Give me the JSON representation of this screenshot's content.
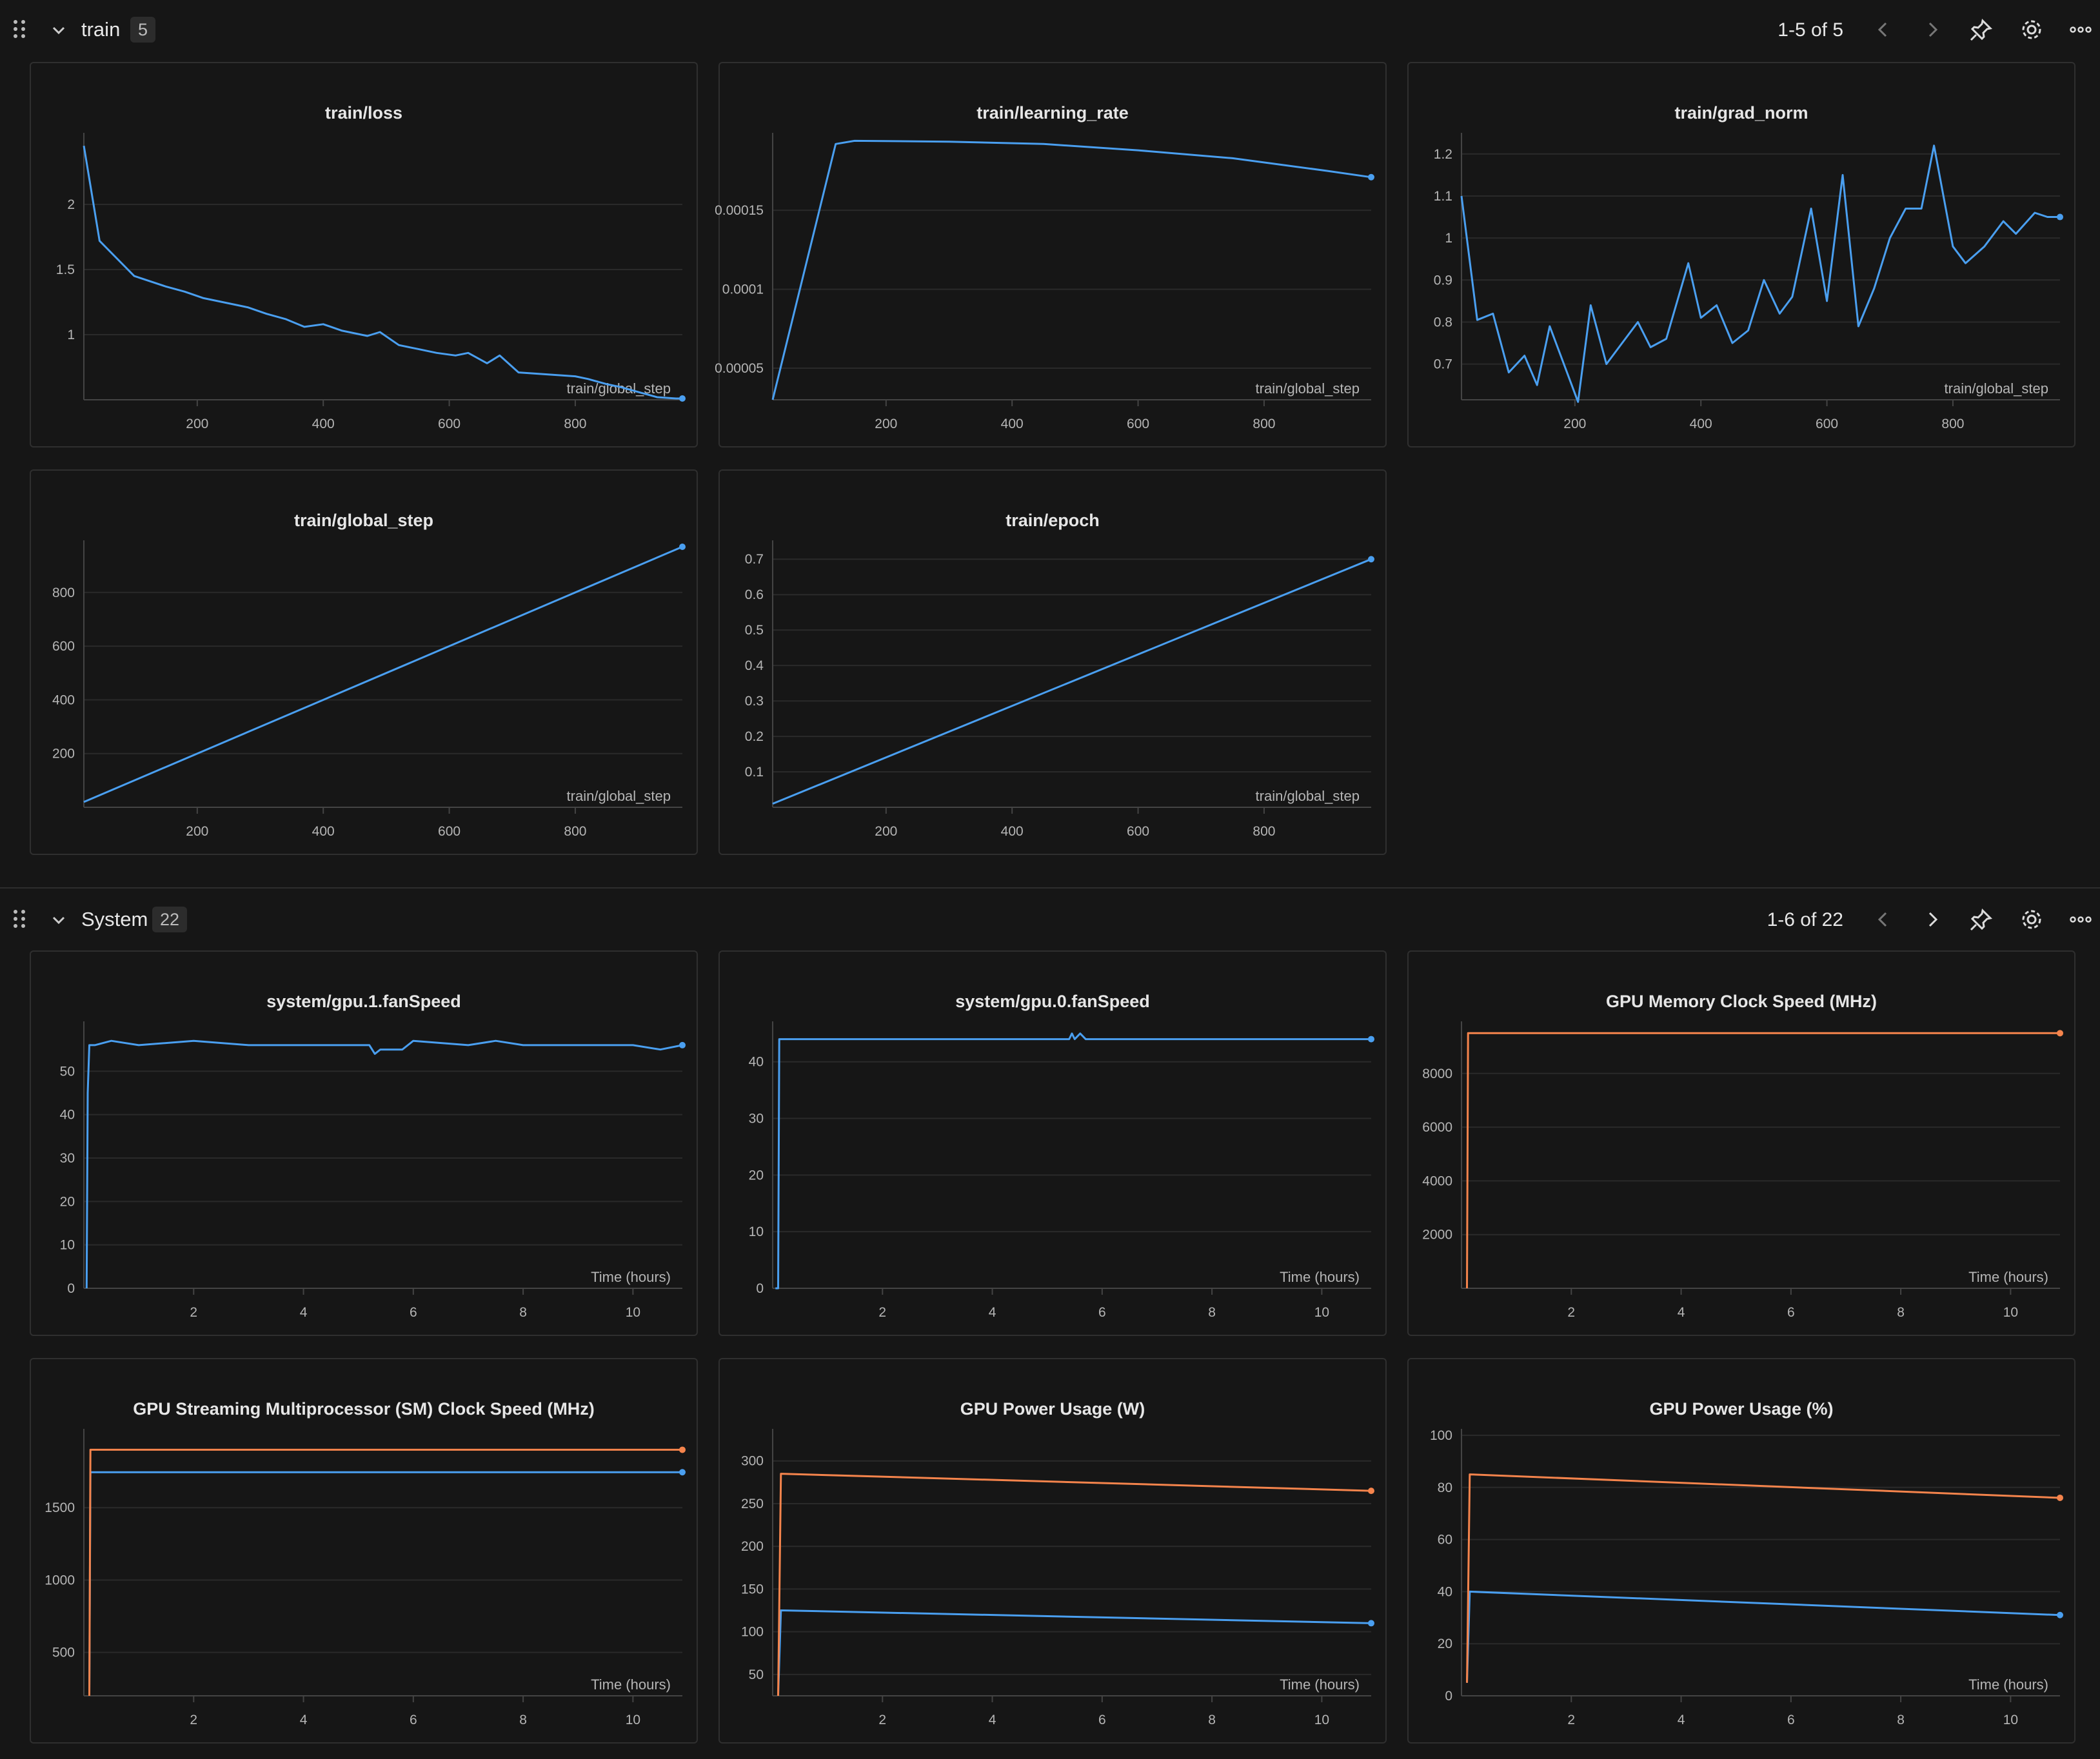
{
  "colors": {
    "blue": "#4a9ff0",
    "orange": "#f5844c",
    "grid": "#2a2a2a",
    "axis": "#444444"
  },
  "sections": [
    {
      "title": "train",
      "count": "5",
      "pager": "1-5 of 5",
      "icons": [
        "drag-handle-icon",
        "chevron-down-icon",
        "chevron-left-icon",
        "chevron-right-icon",
        "pin-icon",
        "gear-icon",
        "more-icon"
      ]
    },
    {
      "title": "System",
      "count": "22",
      "pager": "1-6 of 22",
      "icons": [
        "drag-handle-icon",
        "chevron-down-icon",
        "chevron-left-icon",
        "chevron-right-icon",
        "pin-icon",
        "gear-icon",
        "more-icon"
      ]
    }
  ],
  "chart_data": [
    {
      "type": "line",
      "title": "train/loss",
      "xlabel": "train/global_step",
      "xlim": [
        20,
        970
      ],
      "ylim": [
        0.5,
        2.5
      ],
      "xticks": [
        200,
        400,
        600,
        800
      ],
      "yticks": [
        1,
        1.5,
        2
      ],
      "ytick_labels": [
        "1",
        "1.5",
        "2"
      ],
      "series": [
        {
          "color": "blue",
          "x": [
            20,
            45,
            100,
            150,
            180,
            210,
            250,
            280,
            310,
            340,
            370,
            400,
            430,
            470,
            490,
            520,
            550,
            580,
            610,
            630,
            660,
            680,
            710,
            740,
            800,
            820,
            850,
            870,
            900,
            930,
            960,
            970
          ],
          "y": [
            2.45,
            1.72,
            1.45,
            1.37,
            1.33,
            1.28,
            1.24,
            1.21,
            1.16,
            1.12,
            1.06,
            1.08,
            1.03,
            0.99,
            1.02,
            0.92,
            0.89,
            0.86,
            0.84,
            0.86,
            0.78,
            0.84,
            0.71,
            0.7,
            0.68,
            0.66,
            0.62,
            0.6,
            0.56,
            0.52,
            0.51,
            0.51
          ]
        }
      ]
    },
    {
      "type": "line",
      "title": "train/learning_rate",
      "xlabel": "train/global_step",
      "xlim": [
        20,
        970
      ],
      "ylim": [
        3e-05,
        0.000195
      ],
      "xticks": [
        200,
        400,
        600,
        800
      ],
      "yticks": [
        5e-05,
        0.0001,
        0.00015
      ],
      "ytick_labels": [
        "0.00005",
        "0.0001",
        "0.00015"
      ],
      "series": [
        {
          "color": "blue",
          "x": [
            20,
            120,
            150,
            300,
            450,
            600,
            750,
            900,
            970
          ],
          "y": [
            3e-05,
            0.000192,
            0.000194,
            0.0001935,
            0.000192,
            0.000188,
            0.000183,
            0.000175,
            0.000171
          ]
        }
      ]
    },
    {
      "type": "line",
      "title": "train/grad_norm",
      "xlabel": "train/global_step",
      "xlim": [
        20,
        970
      ],
      "ylim": [
        0.615,
        1.235
      ],
      "xticks": [
        200,
        400,
        600,
        800
      ],
      "yticks": [
        0.7,
        0.8,
        0.9,
        1,
        1.1,
        1.2
      ],
      "ytick_labels": [
        "0.7",
        "0.8",
        "0.9",
        "1",
        "1.1",
        "1.2"
      ],
      "series": [
        {
          "color": "blue",
          "x": [
            20,
            45,
            70,
            95,
            120,
            140,
            160,
            185,
            205,
            225,
            250,
            275,
            300,
            320,
            345,
            380,
            400,
            425,
            450,
            475,
            500,
            525,
            545,
            575,
            600,
            625,
            650,
            675,
            700,
            725,
            750,
            770,
            800,
            820,
            850,
            880,
            900,
            930,
            950,
            970
          ],
          "y": [
            1.1,
            0.805,
            0.82,
            0.68,
            0.72,
            0.65,
            0.79,
            0.69,
            0.61,
            0.84,
            0.7,
            0.75,
            0.8,
            0.74,
            0.76,
            0.94,
            0.81,
            0.84,
            0.75,
            0.78,
            0.9,
            0.82,
            0.86,
            1.07,
            0.85,
            1.15,
            0.79,
            0.88,
            1.0,
            1.07,
            1.07,
            1.22,
            0.98,
            0.94,
            0.98,
            1.04,
            1.01,
            1.06,
            1.05,
            1.05
          ]
        }
      ]
    },
    {
      "type": "line",
      "title": "train/global_step",
      "xlabel": "train/global_step",
      "xlim": [
        20,
        970
      ],
      "ylim": [
        0,
        970
      ],
      "xticks": [
        200,
        400,
        600,
        800
      ],
      "yticks": [
        200,
        400,
        600,
        800
      ],
      "ytick_labels": [
        "200",
        "400",
        "600",
        "800"
      ],
      "series": [
        {
          "color": "blue",
          "x": [
            20,
            970
          ],
          "y": [
            20,
            970
          ]
        }
      ]
    },
    {
      "type": "line",
      "title": "train/epoch",
      "xlabel": "train/global_step",
      "xlim": [
        20,
        970
      ],
      "ylim": [
        0,
        0.735
      ],
      "xticks": [
        200,
        400,
        600,
        800
      ],
      "yticks": [
        0.1,
        0.2,
        0.3,
        0.4,
        0.5,
        0.6,
        0.7
      ],
      "ytick_labels": [
        "0.1",
        "0.2",
        "0.3",
        "0.4",
        "0.5",
        "0.6",
        "0.7"
      ],
      "series": [
        {
          "color": "blue",
          "x": [
            20,
            970
          ],
          "y": [
            0.01,
            0.7
          ]
        }
      ]
    },
    {
      "type": "line",
      "title": "system/gpu.1.fanSpeed",
      "xlabel": "Time (hours)",
      "xlim": [
        0,
        10.9
      ],
      "ylim": [
        0,
        60
      ],
      "xticks": [
        2,
        4,
        6,
        8,
        10
      ],
      "yticks": [
        0,
        10,
        20,
        30,
        40,
        50
      ],
      "ytick_labels": [
        "0",
        "10",
        "20",
        "30",
        "40",
        "50"
      ],
      "series": [
        {
          "color": "blue",
          "x": [
            0.05,
            0.07,
            0.1,
            0.2,
            0.5,
            1,
            2,
            3,
            4,
            5.2,
            5.3,
            5.4,
            5.8,
            6,
            7,
            7.5,
            8,
            9,
            10,
            10.5,
            10.9
          ],
          "y": [
            0,
            45,
            56,
            56,
            57,
            56,
            57,
            56,
            56,
            56,
            54,
            55,
            55,
            57,
            56,
            57,
            56,
            56,
            56,
            55,
            56
          ]
        }
      ]
    },
    {
      "type": "line",
      "title": "system/gpu.0.fanSpeed",
      "xlabel": "Time (hours)",
      "xlim": [
        0,
        10.9
      ],
      "ylim": [
        0,
        46
      ],
      "xticks": [
        2,
        4,
        6,
        8,
        10
      ],
      "yticks": [
        0,
        10,
        20,
        30,
        40
      ],
      "ytick_labels": [
        "0",
        "10",
        "20",
        "30",
        "40"
      ],
      "series": [
        {
          "color": "blue",
          "x": [
            0.05,
            0.1,
            0.12,
            5.4,
            5.45,
            5.5,
            5.6,
            5.7,
            10.9
          ],
          "y": [
            0,
            0,
            44,
            44,
            45,
            44,
            45,
            44,
            44
          ]
        }
      ]
    },
    {
      "type": "line",
      "title": "GPU Memory Clock Speed (MHz)",
      "xlabel": "Time (hours)",
      "xlim": [
        0,
        10.9
      ],
      "ylim": [
        0,
        9700
      ],
      "xticks": [
        2,
        4,
        6,
        8,
        10
      ],
      "yticks": [
        2000,
        4000,
        6000,
        8000
      ],
      "ytick_labels": [
        "2000",
        "4000",
        "6000",
        "8000"
      ],
      "series": [
        {
          "color": "orange",
          "x": [
            0.1,
            0.12,
            10.9
          ],
          "y": [
            0,
            9500,
            9500
          ]
        }
      ]
    },
    {
      "type": "line",
      "title": "GPU Streaming Multiprocessor (SM) Clock Speed (MHz)",
      "xlabel": "Time (hours)",
      "xlim": [
        0,
        10.9
      ],
      "ylim": [
        200,
        2000
      ],
      "xticks": [
        2,
        4,
        6,
        8,
        10
      ],
      "yticks": [
        500,
        1000,
        1500
      ],
      "ytick_labels": [
        "500",
        "1000",
        "1500"
      ],
      "series": [
        {
          "color": "blue",
          "x": [
            0.1,
            0.12,
            10.9
          ],
          "y": [
            200,
            1745,
            1745
          ]
        },
        {
          "color": "orange",
          "x": [
            0.1,
            0.12,
            10.9
          ],
          "y": [
            200,
            1900,
            1900
          ]
        }
      ]
    },
    {
      "type": "line",
      "title": "GPU Power Usage (W)",
      "xlabel": "Time (hours)",
      "xlim": [
        0,
        10.9
      ],
      "ylim": [
        25,
        330
      ],
      "xticks": [
        2,
        4,
        6,
        8,
        10
      ],
      "yticks": [
        50,
        100,
        150,
        200,
        250,
        300
      ],
      "ytick_labels": [
        "50",
        "100",
        "150",
        "200",
        "250",
        "300"
      ],
      "series": [
        {
          "color": "blue",
          "x": [
            0.1,
            0.15,
            10.9
          ],
          "y": [
            25,
            125,
            110
          ]
        },
        {
          "color": "orange",
          "x": [
            0.1,
            0.15,
            10.9
          ],
          "y": [
            25,
            285,
            265
          ]
        }
      ]
    },
    {
      "type": "line",
      "title": "GPU Power Usage (%)",
      "xlabel": "Time (hours)",
      "xlim": [
        0,
        10.9
      ],
      "ylim": [
        0,
        100
      ],
      "xticks": [
        2,
        4,
        6,
        8,
        10
      ],
      "yticks": [
        0,
        20,
        40,
        60,
        80,
        100
      ],
      "ytick_labels": [
        "0",
        "20",
        "40",
        "60",
        "80",
        "100"
      ],
      "series": [
        {
          "color": "blue",
          "x": [
            0.1,
            0.15,
            10.9
          ],
          "y": [
            5,
            40,
            31
          ]
        },
        {
          "color": "orange",
          "x": [
            0.1,
            0.15,
            10.9
          ],
          "y": [
            5,
            85,
            76
          ]
        }
      ]
    }
  ]
}
